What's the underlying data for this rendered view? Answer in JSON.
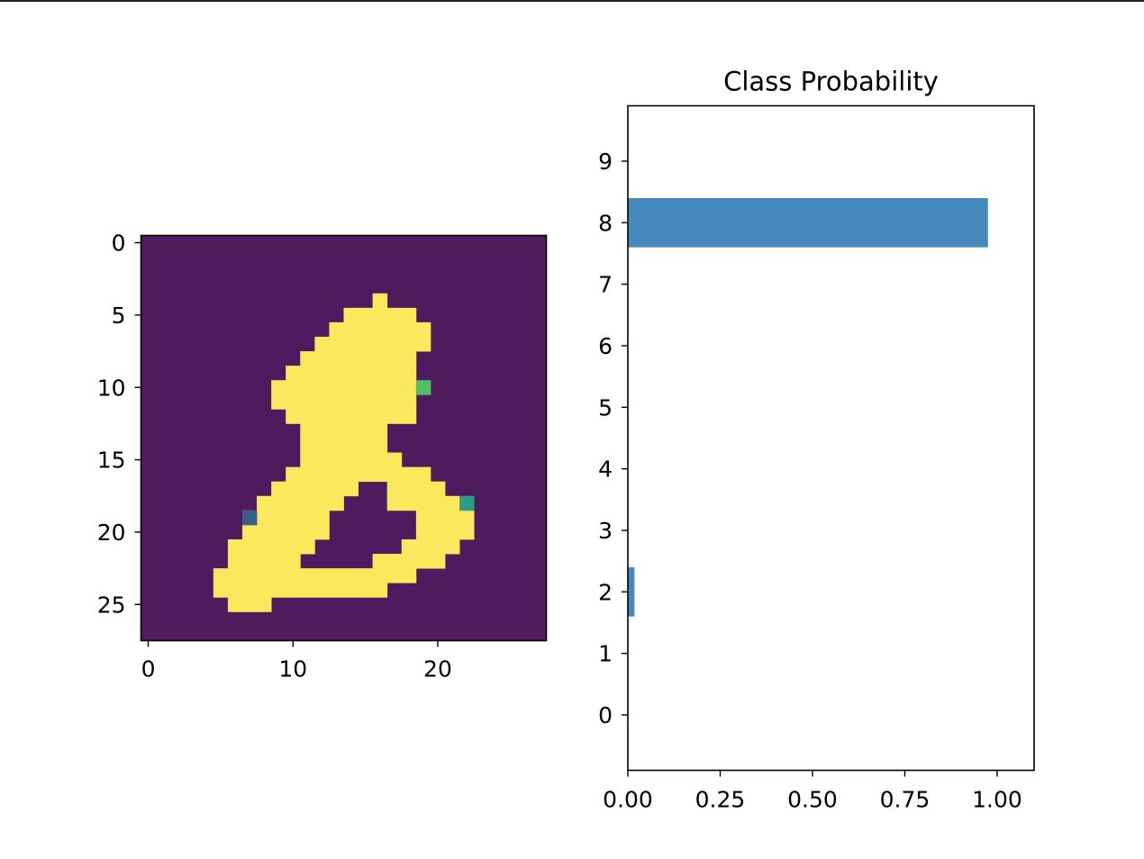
{
  "chart_data": [
    {
      "type": "heatmap",
      "title": "",
      "colormap": "viridis",
      "rows": 28,
      "cols": 28,
      "xticks": [
        0,
        10,
        20
      ],
      "yticks": [
        0,
        5,
        10,
        15,
        20,
        25
      ],
      "xlim": [
        -0.5,
        27.5
      ],
      "ylim": [
        27.5,
        -0.5
      ],
      "background_color": "#4f1b5e",
      "foreground_color": "#fae95c",
      "pixels": [
        {
          "row": 4,
          "cols": [
            [
              16,
              16
            ]
          ],
          "value": 1.0
        },
        {
          "row": 5,
          "cols": [
            [
              14,
              18
            ]
          ],
          "value": 1.0
        },
        {
          "row": 6,
          "cols": [
            [
              13,
              19
            ]
          ],
          "value": 1.0
        },
        {
          "row": 7,
          "cols": [
            [
              12,
              19
            ]
          ],
          "value": 1.0
        },
        {
          "row": 8,
          "cols": [
            [
              11,
              18
            ]
          ],
          "value": 1.0
        },
        {
          "row": 9,
          "cols": [
            [
              10,
              18
            ]
          ],
          "value": 1.0
        },
        {
          "row": 10,
          "cols": [
            [
              9,
              18
            ]
          ],
          "value": 1.0
        },
        {
          "row": 11,
          "cols": [
            [
              9,
              18
            ]
          ],
          "value": 1.0
        },
        {
          "row": 12,
          "cols": [
            [
              10,
              18
            ]
          ],
          "value": 1.0
        },
        {
          "row": 13,
          "cols": [
            [
              11,
              16
            ]
          ],
          "value": 1.0
        },
        {
          "row": 14,
          "cols": [
            [
              11,
              16
            ]
          ],
          "value": 1.0
        },
        {
          "row": 15,
          "cols": [
            [
              11,
              17
            ]
          ],
          "value": 1.0
        },
        {
          "row": 16,
          "cols": [
            [
              10,
              19
            ]
          ],
          "value": 1.0
        },
        {
          "row": 17,
          "cols": [
            [
              9,
              14
            ],
            [
              17,
              20
            ]
          ],
          "value": 1.0
        },
        {
          "row": 18,
          "cols": [
            [
              8,
              13
            ],
            [
              17,
              21
            ]
          ],
          "value": 1.0
        },
        {
          "row": 19,
          "cols": [
            [
              7,
              12
            ],
            [
              19,
              22
            ]
          ],
          "value": 1.0
        },
        {
          "row": 20,
          "cols": [
            [
              7,
              12
            ],
            [
              19,
              22
            ]
          ],
          "value": 1.0
        },
        {
          "row": 21,
          "cols": [
            [
              6,
              11
            ],
            [
              18,
              21
            ]
          ],
          "value": 1.0
        },
        {
          "row": 22,
          "cols": [
            [
              6,
              10
            ],
            [
              16,
              20
            ]
          ],
          "value": 1.0
        },
        {
          "row": 23,
          "cols": [
            [
              5,
              18
            ]
          ],
          "value": 1.0
        },
        {
          "row": 24,
          "cols": [
            [
              5,
              16
            ]
          ],
          "value": 1.0
        },
        {
          "row": 25,
          "cols": [
            [
              6,
              8
            ]
          ],
          "value": 1.0
        },
        {
          "row": 10,
          "cols": [
            [
              19,
              19
            ]
          ],
          "value": 0.7
        },
        {
          "row": 18,
          "cols": [
            [
              22,
              22
            ]
          ],
          "value": 0.55
        },
        {
          "row": 19,
          "cols": [
            [
              7,
              7
            ]
          ],
          "value": 0.3
        }
      ]
    },
    {
      "type": "bar",
      "orientation": "horizontal",
      "title": "Class Probability",
      "categories": [
        "0",
        "1",
        "2",
        "3",
        "4",
        "5",
        "6",
        "7",
        "8",
        "9"
      ],
      "values": [
        0.0,
        0.0,
        0.018,
        0.0,
        0.0,
        0.0,
        0.0,
        0.0,
        0.975,
        0.0
      ],
      "xticks": [
        0.0,
        0.25,
        0.5,
        0.75,
        1.0
      ],
      "xtick_labels": [
        "0.00",
        "0.25",
        "0.50",
        "0.75",
        "1.00"
      ],
      "xlim": [
        0,
        1.1
      ],
      "ylim": [
        -0.9,
        9.9
      ],
      "bar_color": "#4689bc",
      "grid": false,
      "legend": "none"
    }
  ]
}
